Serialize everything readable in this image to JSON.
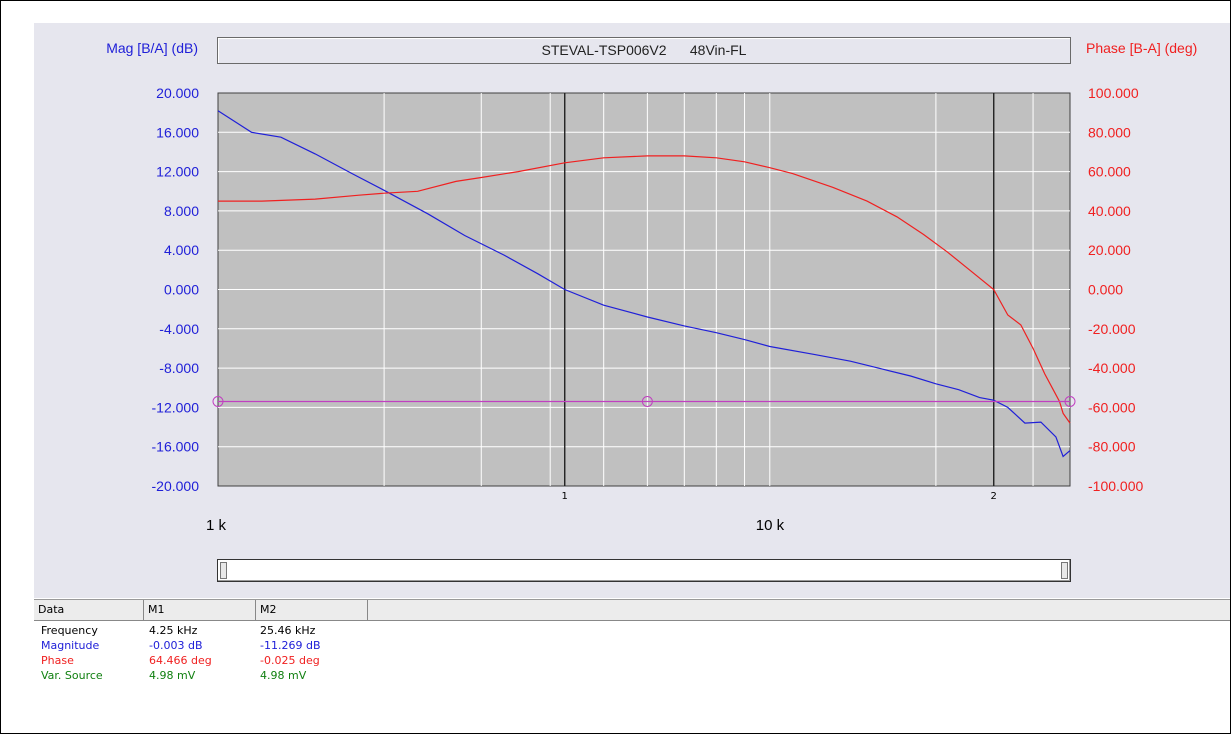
{
  "title": "STEVAL-TSP006V2      48Vin-FL",
  "left_axis_label": "Mag [B/A] (dB)",
  "right_axis_label": "Phase [B-A] (deg)",
  "colors": {
    "magnitude": "#2020d8",
    "phase": "#f02020",
    "cursor": "#c040c0",
    "var_source": "#108010",
    "plot_bg": "#c0c0c0",
    "panel_bg": "#e6e6ee"
  },
  "chart_data": {
    "type": "line",
    "x_scale": "log",
    "xlim": [
      1000,
      35000
    ],
    "x_tick_labels": [
      {
        "value": 1000,
        "label": "1 k"
      },
      {
        "value": 10000,
        "label": "10 k"
      }
    ],
    "cursor_marker_labels": [
      {
        "value": 4250,
        "label": "1"
      },
      {
        "value": 25460,
        "label": "2"
      }
    ],
    "y_left": {
      "label": "Mag [B/A] (dB)",
      "lim": [
        -20,
        20
      ],
      "ticks": [
        "20.000",
        "16.000",
        "12.000",
        "8.000",
        "4.000",
        "0.000",
        "-4.000",
        "-8.000",
        "-12.000",
        "-16.000",
        "-20.000"
      ]
    },
    "y_right": {
      "label": "Phase [B-A] (deg)",
      "lim": [
        -100,
        100
      ],
      "ticks": [
        "100.000",
        "80.000",
        "60.000",
        "40.000",
        "20.000",
        "0.000",
        "-20.000",
        "-40.000",
        "-60.000",
        "-80.000",
        "-100.000"
      ]
    },
    "grid": true,
    "series": [
      {
        "name": "Magnitude",
        "axis": "left",
        "x": [
          1000,
          1150,
          1300,
          1500,
          1750,
          2000,
          2400,
          2800,
          3300,
          3800,
          4250,
          5000,
          6000,
          7000,
          8000,
          9000,
          10000,
          12000,
          14000,
          16000,
          18000,
          20000,
          22000,
          24000,
          25460,
          27000,
          29000,
          31000,
          33000,
          34000,
          35000
        ],
        "y": [
          18.2,
          16.0,
          15.5,
          13.8,
          11.8,
          10.1,
          7.7,
          5.5,
          3.5,
          1.6,
          0.0,
          -1.6,
          -2.8,
          -3.7,
          -4.4,
          -5.1,
          -5.8,
          -6.6,
          -7.3,
          -8.1,
          -8.8,
          -9.6,
          -10.2,
          -11.0,
          -11.27,
          -12.0,
          -13.6,
          -13.5,
          -15.0,
          -17.0,
          -16.4
        ]
      },
      {
        "name": "Phase",
        "axis": "right",
        "x": [
          1000,
          1200,
          1500,
          1800,
          2000,
          2300,
          2700,
          3000,
          3500,
          4250,
          5000,
          6000,
          7000,
          8000,
          9000,
          10000,
          11000,
          13000,
          15000,
          17000,
          19000,
          21000,
          23000,
          25460,
          27000,
          28500,
          30000,
          31500,
          32500,
          33500,
          34000,
          35000
        ],
        "y": [
          45,
          45,
          46,
          48,
          49,
          50,
          55,
          57,
          60,
          64.5,
          67,
          68,
          68,
          67,
          65,
          62,
          59,
          52,
          45,
          37,
          28,
          19,
          10,
          0,
          -13,
          -18,
          -30,
          -43,
          -50,
          -57,
          -63,
          -68
        ]
      },
      {
        "name": "Var. Source",
        "axis": "left",
        "x": [
          1000,
          35000
        ],
        "y": [
          -11.4,
          -11.4
        ]
      }
    ]
  },
  "table": {
    "headers": [
      "Data",
      "M1",
      "M2"
    ],
    "rows": [
      {
        "label": "Frequency",
        "m1": "4.25 kHz",
        "m2": "25.46 kHz",
        "color": "#000000"
      },
      {
        "label": "Magnitude",
        "m1": "-0.003 dB",
        "m2": "-11.269 dB",
        "color": "#2020d8"
      },
      {
        "label": "Phase",
        "m1": "64.466 deg",
        "m2": "-0.025 deg",
        "color": "#f02020"
      },
      {
        "label": "Var. Source",
        "m1": "4.98 mV",
        "m2": "4.98 mV",
        "color": "#108010"
      }
    ]
  }
}
